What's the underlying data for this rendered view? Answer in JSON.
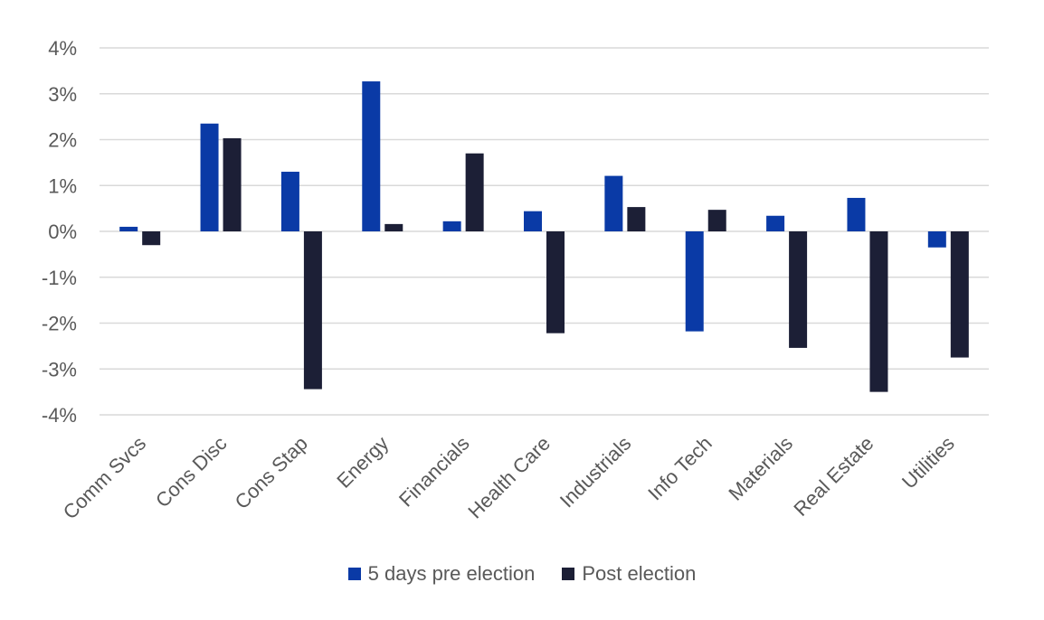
{
  "chart_data": {
    "type": "bar",
    "title": "",
    "xlabel": "",
    "ylabel": "",
    "categories": [
      "Comm Svcs",
      "Cons Disc",
      "Cons Stap",
      "Energy",
      "Financials",
      "Health Care",
      "Industrials",
      "Info Tech",
      "Materials",
      "Real Estate",
      "Utilities"
    ],
    "series": [
      {
        "name": "5 days pre election",
        "color": "#0a3aa6",
        "values": [
          0.1,
          2.35,
          1.3,
          3.27,
          0.22,
          0.44,
          1.21,
          -2.18,
          0.34,
          0.73,
          -0.35
        ]
      },
      {
        "name": "Post election",
        "color": "#1c1f36",
        "values": [
          -0.3,
          2.03,
          -3.44,
          0.16,
          1.7,
          -2.22,
          0.53,
          0.47,
          -2.54,
          -3.5,
          -2.75
        ]
      }
    ],
    "ylim": [
      -4,
      4
    ],
    "yticks": [
      4,
      3,
      2,
      1,
      0,
      -1,
      -2,
      -3,
      -4
    ],
    "ytick_labels": [
      "4%",
      "3%",
      "2%",
      "1%",
      "0%",
      "-1%",
      "-2%",
      "-3%",
      "-4%"
    ],
    "grid": true,
    "legend_position": "bottom"
  }
}
